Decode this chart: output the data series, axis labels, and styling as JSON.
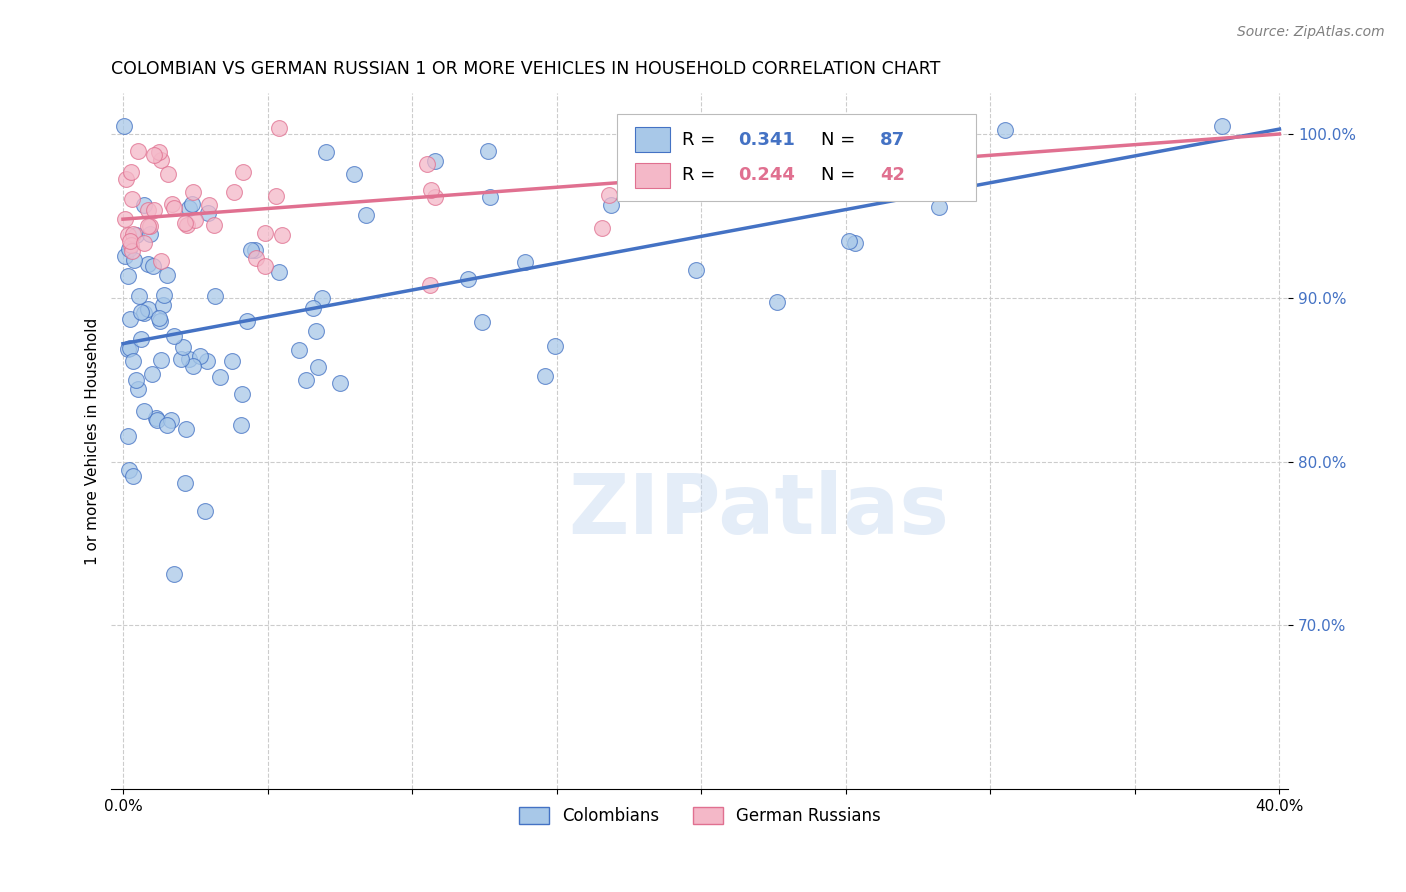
{
  "title": "COLOMBIAN VS GERMAN RUSSIAN 1 OR MORE VEHICLES IN HOUSEHOLD CORRELATION CHART",
  "source": "Source: ZipAtlas.com",
  "ylabel": "1 or more Vehicles in Household",
  "xmin": 0.0,
  "xmax": 0.4,
  "ymin": 0.6,
  "ymax": 1.025,
  "xticks": [
    0.0,
    0.05,
    0.1,
    0.15,
    0.2,
    0.25,
    0.3,
    0.35,
    0.4
  ],
  "yticks": [
    0.7,
    0.8,
    0.9,
    1.0
  ],
  "legend_R1_val": "0.341",
  "legend_N1_val": "87",
  "legend_R2_val": "0.244",
  "legend_N2_val": "42",
  "blue_fill": "#a8c8e8",
  "blue_edge": "#4472c4",
  "blue_line": "#4472c4",
  "pink_fill": "#f4b8c8",
  "pink_edge": "#e07090",
  "pink_line": "#e07090",
  "watermark": "ZIPatlas",
  "col_line_x": [
    0.0,
    0.4
  ],
  "col_line_y": [
    0.872,
    1.003
  ],
  "ger_line_x": [
    0.0,
    0.4
  ],
  "ger_line_y": [
    0.948,
    1.0
  ]
}
